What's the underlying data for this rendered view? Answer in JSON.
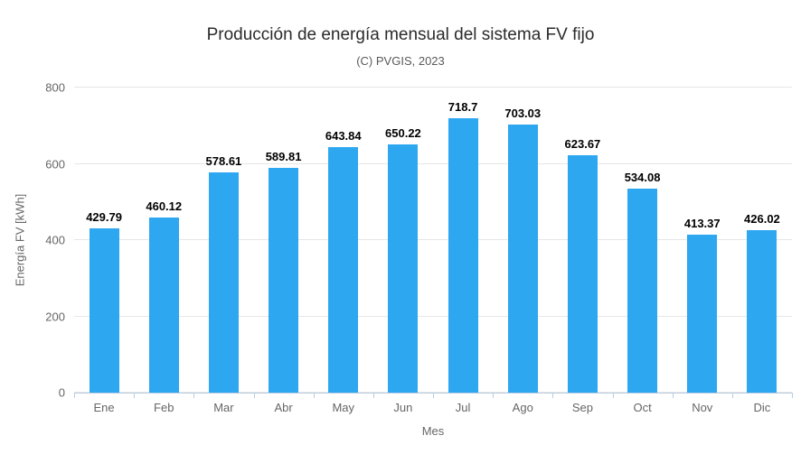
{
  "chart": {
    "title": "Producción de energía mensual del sistema FV fijo",
    "subtitle": "(C) PVGIS, 2023"
  },
  "chart_data": {
    "type": "bar",
    "title": "Producción de energía mensual del sistema FV fijo",
    "subtitle": "(C) PVGIS, 2023",
    "xlabel": "Mes",
    "ylabel": "Energía FV [kWh]",
    "categories": [
      "Ene",
      "Feb",
      "Mar",
      "Abr",
      "May",
      "Jun",
      "Jul",
      "Ago",
      "Sep",
      "Oct",
      "Nov",
      "Dic"
    ],
    "values": [
      429.79,
      460.12,
      578.61,
      589.81,
      643.84,
      650.22,
      718.7,
      703.03,
      623.67,
      534.08,
      413.37,
      426.02
    ],
    "value_labels": [
      "429.79",
      "460.12",
      "578.61",
      "589.81",
      "643.84",
      "650.22",
      "718.7",
      "703.03",
      "623.67",
      "534.08",
      "413.37",
      "426.02"
    ],
    "ylim": [
      0,
      800
    ],
    "yticks": [
      0,
      200,
      400,
      600,
      800
    ],
    "grid": true,
    "legend": "none",
    "bar_color": "#2da7f0",
    "axis_line_color": "#b9cde3",
    "gridline_color": "#e6e6e6",
    "tick_label_color": "#666666",
    "value_label_color": "#000000"
  }
}
